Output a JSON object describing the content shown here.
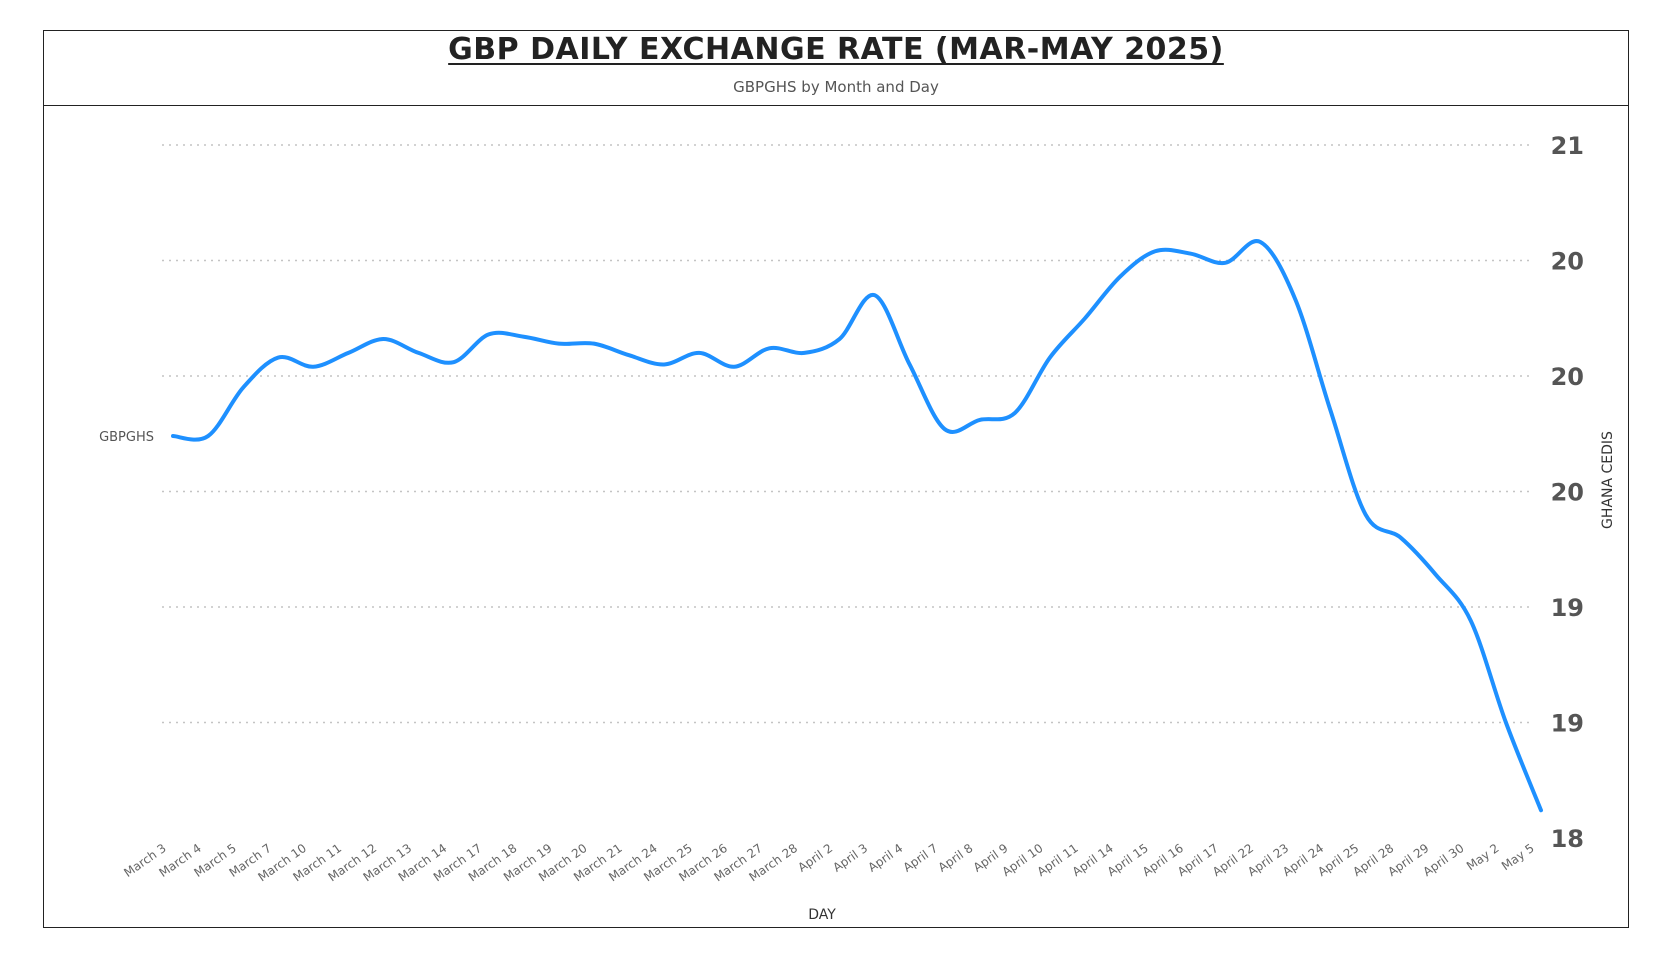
{
  "chart_data": {
    "type": "line",
    "title": "GBP DAILY EXCHANGE RATE (MAR-MAY 2025)",
    "subtitle": "GBPGHS by Month and Day",
    "xlabel": "DAY",
    "ylabel": "GHANA CEDIS",
    "categories": [
      "March 3",
      "March 4",
      "March 5",
      "March 7",
      "March 10",
      "March 11",
      "March 12",
      "March 13",
      "March 14",
      "March 17",
      "March 18",
      "March 19",
      "March 20",
      "March 21",
      "March 24",
      "March 25",
      "March 26",
      "March 27",
      "March 28",
      "April 2",
      "April 3",
      "April 4",
      "April 7",
      "April 8",
      "April 9",
      "April 10",
      "April 11",
      "April 14",
      "April 15",
      "April 16",
      "April 17",
      "April 22",
      "April 23",
      "April 24",
      "April 25",
      "April 28",
      "April 29",
      "April 30",
      "May 2",
      "May 5"
    ],
    "ylim": [
      18,
      21.25
    ],
    "yticks": [
      18,
      18.5,
      19,
      19.5,
      20,
      20.5,
      21
    ],
    "ytick_labels": [
      "18",
      "19",
      "19",
      "20",
      "20",
      "20",
      "21"
    ],
    "grid": true,
    "series": [
      {
        "name": "GBPGHS",
        "color": "#1E90FF",
        "values": [
          19.74,
          19.74,
          19.95,
          20.08,
          20.04,
          20.1,
          20.16,
          20.1,
          20.06,
          20.18,
          20.17,
          20.14,
          20.14,
          20.09,
          20.05,
          20.1,
          20.04,
          20.12,
          20.1,
          20.16,
          20.35,
          20.05,
          19.77,
          19.81,
          19.84,
          20.08,
          20.25,
          20.43,
          20.54,
          20.53,
          20.49,
          20.58,
          20.33,
          19.85,
          19.4,
          19.3,
          19.14,
          18.94,
          18.5,
          18.12
        ]
      }
    ]
  }
}
